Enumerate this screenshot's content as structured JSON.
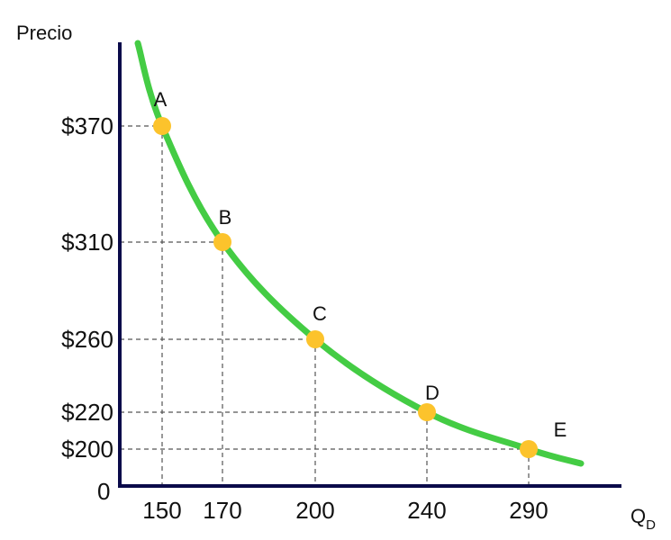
{
  "chart_data": {
    "type": "line",
    "title": "",
    "ylabel": "Precio",
    "xlabel": {
      "main": "Q",
      "sub": "D"
    },
    "origin_label": "0",
    "x_ticks": [
      150,
      170,
      200,
      240,
      290
    ],
    "y_ticks": [
      "$370",
      "$310",
      "$260",
      "$220",
      "$200"
    ],
    "y_tick_values": [
      370,
      310,
      260,
      220,
      200
    ],
    "points": [
      {
        "label": "A",
        "x": 150,
        "y": 370
      },
      {
        "label": "B",
        "x": 170,
        "y": 310
      },
      {
        "label": "C",
        "x": 200,
        "y": 260
      },
      {
        "label": "D",
        "x": 240,
        "y": 220
      },
      {
        "label": "E",
        "x": 290,
        "y": 200
      }
    ],
    "grid": "dashed guide lines to points",
    "colors": {
      "curve": "#44cc44",
      "points": "#fcc32c",
      "axes": "#0a0a4a",
      "guides": "#555555"
    }
  }
}
